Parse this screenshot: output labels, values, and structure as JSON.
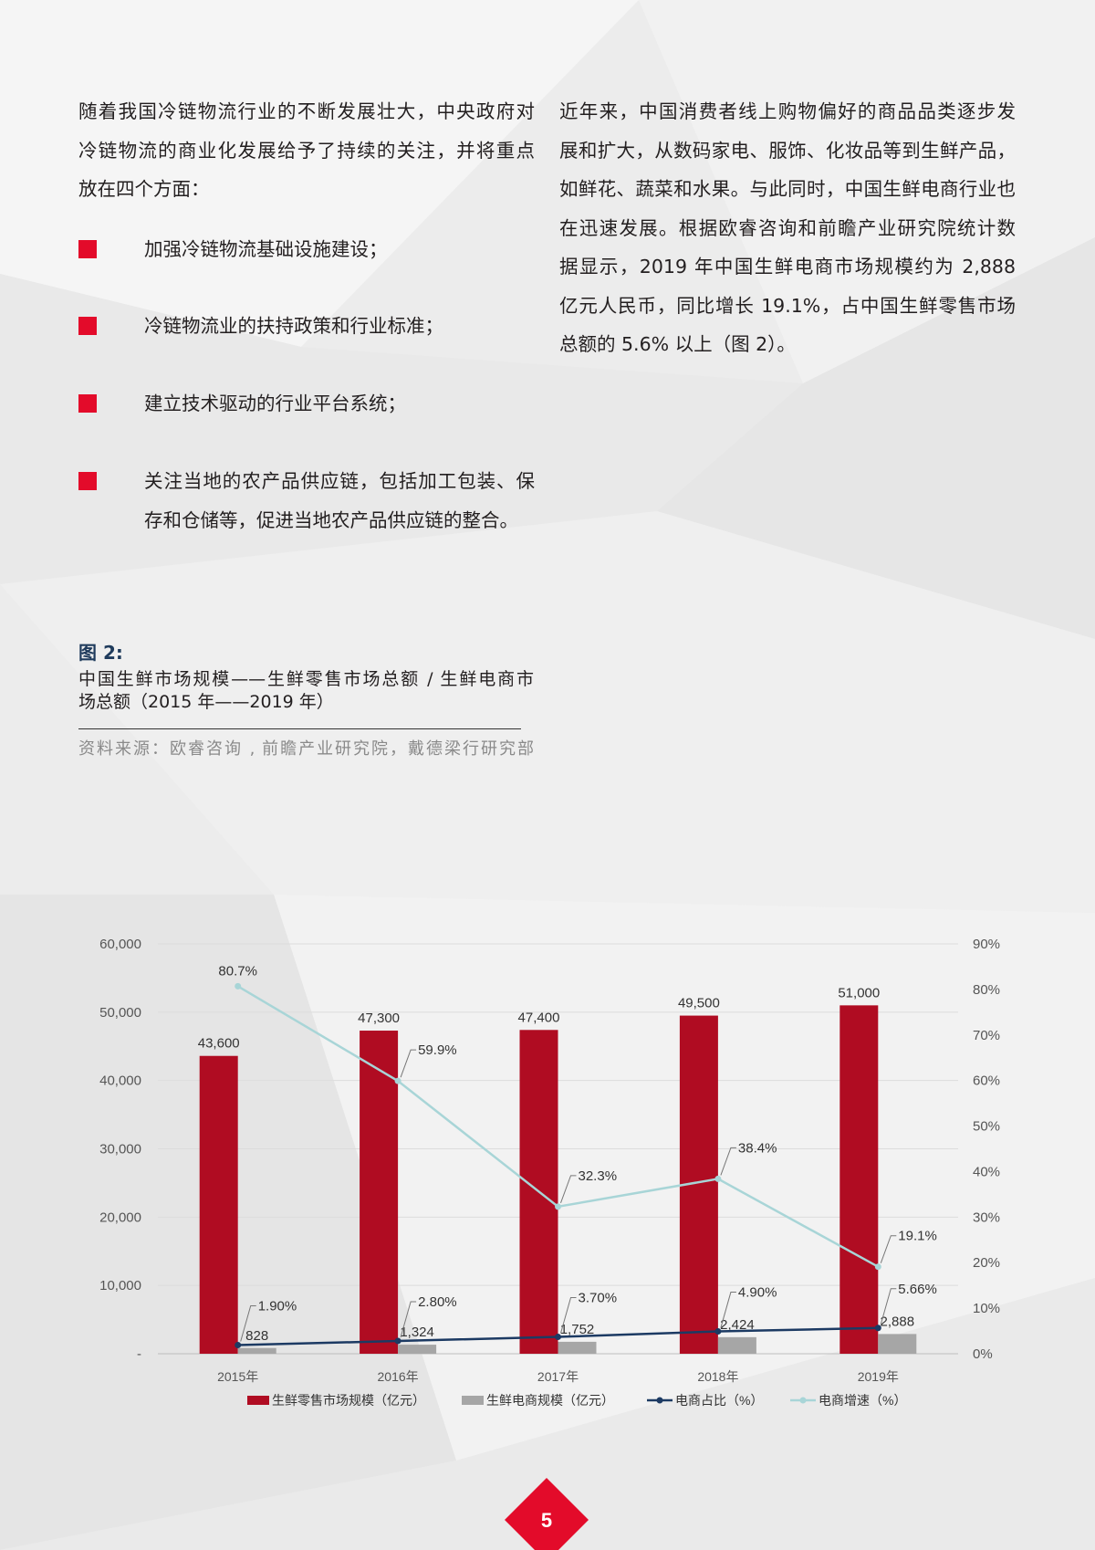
{
  "page": {
    "number": "5",
    "accent_color": "#e30b2a"
  },
  "left": {
    "intro_lines": [
      "随着我国冷链物流行业的不断发展壮大，中央政府对",
      "冷链物流的商业化发展给予了持续的关注，并将重点",
      "放在四个方面："
    ],
    "bullets": [
      {
        "lines": [
          "加强冷链物流基础设施建设；"
        ]
      },
      {
        "lines": [
          "冷链物流业的扶持政策和行业标准；"
        ]
      },
      {
        "lines": [
          "建立技术驱动的行业平台系统；"
        ]
      },
      {
        "lines": [
          "关注当地的农产品供应链，包括加工包装、保",
          "存和仓储等，促进当地农产品供应链的整合。"
        ]
      }
    ]
  },
  "right": {
    "lines": [
      "近年来，中国消费者线上购物偏好的商品品类逐步发",
      "展和扩大，从数码家电、服饰、化妆品等到生鲜产品，",
      "如鲜花、蔬菜和水果。与此同时，中国生鲜电商行业也",
      "在迅速发展。根据欧睿咨询和前瞻产业研究院统计数",
      "据显示，2019 年中国生鲜电商市场规模约为 2,888",
      "亿元人民币，同比增长 19.1%，占中国生鲜零售市场",
      "总额的 5.6% 以上（图 2）。"
    ]
  },
  "figure": {
    "label": "图 2:",
    "label_color": "#1f3b5c",
    "title_lines": [
      "中国生鲜市场规模——生鲜零售市场总额 / 生鲜电商市",
      "场总额（2015 年——2019 年）"
    ],
    "source": "资料来源：欧睿咨询 , 前瞻产业研究院，戴德梁行研究部"
  },
  "chart_data": {
    "type": "bar",
    "categories": [
      "2015年",
      "2016年",
      "2017年",
      "2018年",
      "2019年"
    ],
    "series": [
      {
        "name": "生鲜零售市场规模（亿元）",
        "type": "bar",
        "axis": "left",
        "values": [
          43600,
          47300,
          47400,
          49500,
          51000
        ],
        "labels": [
          "43,600",
          "47,300",
          "47,400",
          "49,500",
          "51,000"
        ],
        "color": "#b00c22"
      },
      {
        "name": "生鲜电商规模（亿元）",
        "type": "bar",
        "axis": "left",
        "values": [
          828,
          1324,
          1752,
          2424,
          2888
        ],
        "labels": [
          "828",
          "1,324",
          "1,752",
          "2,424",
          "2,888"
        ],
        "color": "#a6a6a6"
      },
      {
        "name": "电商占比（%）",
        "type": "line",
        "axis": "right",
        "values": [
          1.9,
          2.8,
          3.7,
          4.9,
          5.66
        ],
        "labels": [
          "1.90%",
          "2.80%",
          "3.70%",
          "4.90%",
          "5.66%"
        ],
        "color": "#1c3a63"
      },
      {
        "name": "电商增速（%）",
        "type": "line",
        "axis": "right",
        "values": [
          80.7,
          59.9,
          32.3,
          38.4,
          19.1
        ],
        "labels": [
          "80.7%",
          "59.9%",
          "32.3%",
          "38.4%",
          "19.1%"
        ],
        "color": "#a8d5d7"
      }
    ],
    "ylim": [
      0,
      60000
    ],
    "y_tick_labels": [
      "-",
      "10,000",
      "20,000",
      "30,000",
      "40,000",
      "50,000",
      "60,000"
    ],
    "y2lim": [
      0,
      90
    ],
    "y2_tick_labels": [
      "0%",
      "10%",
      "20%",
      "30%",
      "40%",
      "50%",
      "60%",
      "70%",
      "80%",
      "90%"
    ],
    "grid": true,
    "legend": "bottom"
  }
}
